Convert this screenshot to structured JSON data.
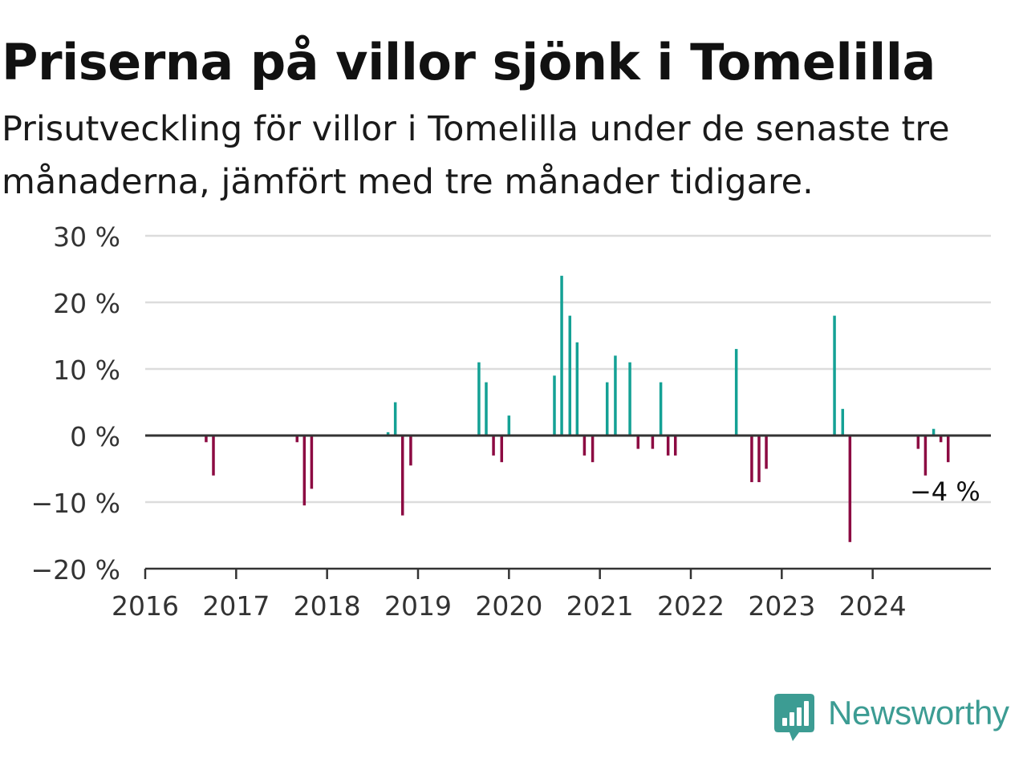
{
  "title": "Priserna på villor sjönk i Tomelilla",
  "subtitle": "Prisutveckling för villor i Tomelilla under de senaste tre månaderna, jämfört med tre månader tidigare.",
  "brand": {
    "name": "Newsworthy",
    "icon": "newsworthy-logo-icon",
    "color": "#3c9c93"
  },
  "colors": {
    "positive": "#14a195",
    "negative": "#8c0a42",
    "grid": "#dcdcdc",
    "axis": "#333333"
  },
  "chart_data": {
    "type": "bar",
    "title": "Priserna på villor sjönk i Tomelilla",
    "subtitle": "Prisutveckling för villor i Tomelilla under de senaste tre månaderna, jämfört med tre månader tidigare.",
    "xlabel": "",
    "ylabel": "",
    "x_unit": "year",
    "xlim": [
      2016,
      2025.3
    ],
    "ylim": [
      -20,
      30
    ],
    "grid": true,
    "y_ticks": [
      {
        "value": 30,
        "label": "30 %"
      },
      {
        "value": 20,
        "label": "20 %"
      },
      {
        "value": 10,
        "label": "10 %"
      },
      {
        "value": 0,
        "label": "0 %"
      },
      {
        "value": -10,
        "label": "−10 %"
      },
      {
        "value": -20,
        "label": "−20 %"
      }
    ],
    "x_ticks": [
      {
        "value": 2016,
        "label": "2016"
      },
      {
        "value": 2017,
        "label": "2017"
      },
      {
        "value": 2018,
        "label": "2018"
      },
      {
        "value": 2019,
        "label": "2019"
      },
      {
        "value": 2020,
        "label": "2020"
      },
      {
        "value": 2021,
        "label": "2021"
      },
      {
        "value": 2022,
        "label": "2022"
      },
      {
        "value": 2023,
        "label": "2023"
      },
      {
        "value": 2024,
        "label": "2024"
      }
    ],
    "points": [
      {
        "x": 2016.67,
        "y": -1
      },
      {
        "x": 2016.75,
        "y": -6
      },
      {
        "x": 2017.67,
        "y": -1
      },
      {
        "x": 2017.75,
        "y": -10.5
      },
      {
        "x": 2017.83,
        "y": -8
      },
      {
        "x": 2018.67,
        "y": 0.5
      },
      {
        "x": 2018.75,
        "y": 5
      },
      {
        "x": 2018.83,
        "y": -12
      },
      {
        "x": 2018.92,
        "y": -4.5
      },
      {
        "x": 2019.67,
        "y": 11
      },
      {
        "x": 2019.75,
        "y": 8
      },
      {
        "x": 2019.83,
        "y": -3
      },
      {
        "x": 2019.92,
        "y": -4
      },
      {
        "x": 2020.0,
        "y": 3
      },
      {
        "x": 2020.5,
        "y": 9
      },
      {
        "x": 2020.58,
        "y": 24
      },
      {
        "x": 2020.67,
        "y": 18
      },
      {
        "x": 2020.75,
        "y": 14
      },
      {
        "x": 2020.83,
        "y": -3
      },
      {
        "x": 2020.92,
        "y": -4
      },
      {
        "x": 2021.08,
        "y": 8
      },
      {
        "x": 2021.17,
        "y": 12
      },
      {
        "x": 2021.33,
        "y": 11
      },
      {
        "x": 2021.42,
        "y": -2
      },
      {
        "x": 2021.58,
        "y": -2
      },
      {
        "x": 2021.67,
        "y": 8
      },
      {
        "x": 2021.75,
        "y": -3
      },
      {
        "x": 2021.83,
        "y": -3
      },
      {
        "x": 2022.5,
        "y": 13
      },
      {
        "x": 2022.67,
        "y": -7
      },
      {
        "x": 2022.75,
        "y": -7
      },
      {
        "x": 2022.83,
        "y": -5
      },
      {
        "x": 2023.58,
        "y": 18
      },
      {
        "x": 2023.67,
        "y": 4
      },
      {
        "x": 2023.75,
        "y": -16
      },
      {
        "x": 2024.5,
        "y": -2
      },
      {
        "x": 2024.58,
        "y": -6
      },
      {
        "x": 2024.67,
        "y": 1
      },
      {
        "x": 2024.75,
        "y": -1
      },
      {
        "x": 2024.83,
        "y": -4
      }
    ],
    "annotations": [
      {
        "text": "−4 %",
        "x": 2024.83,
        "y": -4
      }
    ]
  }
}
